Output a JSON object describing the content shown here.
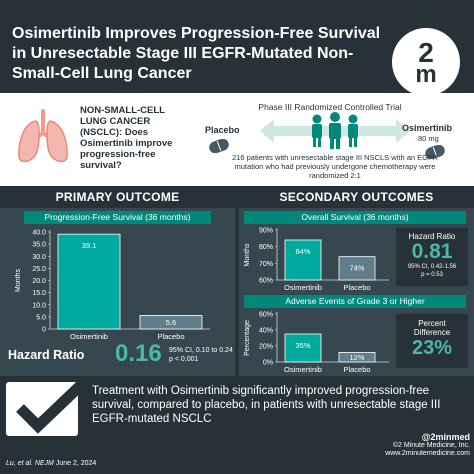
{
  "header": {
    "title": "Osimertinib Improves Progression-Free Survival in Unresectable Stage III EGFR-Mutated Non-Small-Cell Lung Cancer",
    "logo_top": "2",
    "logo_mid": "m",
    "logo_bot": "m"
  },
  "intro": {
    "question": "NON-SMALL-CELL LUNG CANCER (NSCLC): Does Osimertinib improve progression-free survival?",
    "trial_title": "Phase III Randomized Controlled Trial",
    "placebo_label": "Placebo",
    "drug_label": "Osimertinib",
    "drug_dose": "80 mg",
    "trial_text": "216 patients with unresectable stage III NSCLS with an EGFR mutation who had previously undergone chemotherapy were randomized 2:1"
  },
  "primary": {
    "heading": "PRIMARY OUTCOME",
    "subheading": "Progression-Free Survival (36 months)",
    "hr_label": "Hazard Ratio",
    "hr_value": "0.16",
    "hr_ci": "95% CI, 0.10 to 0.24",
    "hr_p": "p < 0.001"
  },
  "secondary": {
    "heading": "SECONDARY OUTCOMES",
    "os_subheading": "Overall Survival (36 months)",
    "ae_subheading": "Adverse Events of Grade 3 or Higher",
    "hr_label": "Hazard Ratio",
    "hr_value": "0.81",
    "hr_ci": "95% CI, 0.42-1.56",
    "hr_p": "p = 0.53",
    "pd_label_1": "Percent",
    "pd_label_2": "Difference",
    "pd_value": "23%"
  },
  "conclusion": {
    "text": "Treatment with Osimertinib significantly improved progression-free survival, compared to placebo, in patients with unresectable stage III EGFR-mutated NSCLC",
    "citation_authors": "Lu, et al.",
    "citation_journal": "NEJM",
    "citation_date": "June 2, 2024",
    "handle": "@2minmed",
    "copyright": "©2 Minute Medicine, Inc.",
    "website": "www.2minutemedicine.com"
  },
  "colors": {
    "dark": "#263238",
    "panel": "#37474f",
    "teal": "#00897b",
    "bar_teal": "#00a99d",
    "bar_grey": "#607d8b"
  },
  "chart_data": [
    {
      "type": "bar",
      "title": "Progression-Free Survival (36 months)",
      "ylabel": "Months",
      "categories": [
        "Osimertinib",
        "Placebo"
      ],
      "values": [
        39.1,
        5.6
      ],
      "value_labels": [
        "39.1",
        "5.6"
      ],
      "ylim": [
        0,
        40
      ],
      "yticks": [
        "0",
        "5.0",
        "10.0",
        "15.0",
        "20.0",
        "25.0",
        "30.0",
        "35.0",
        "40.0"
      ]
    },
    {
      "type": "bar",
      "title": "Overall Survival (36 months)",
      "ylabel": "Months",
      "categories": [
        "Osimertinib",
        "Placebo"
      ],
      "values": [
        84,
        74
      ],
      "value_labels": [
        "84%",
        "74%"
      ],
      "ylim": [
        60,
        90
      ],
      "yticks": [
        "60%",
        "70%",
        "80%",
        "90%"
      ]
    },
    {
      "type": "bar",
      "title": "Adverse Events of Grade 3 or Higher",
      "ylabel": "Percentage",
      "categories": [
        "Osimertinib",
        "Placebo"
      ],
      "values": [
        35,
        12
      ],
      "value_labels": [
        "35%",
        "12%"
      ],
      "ylim": [
        0,
        60
      ],
      "yticks": [
        "0%",
        "20%",
        "40%",
        "60%"
      ]
    }
  ]
}
